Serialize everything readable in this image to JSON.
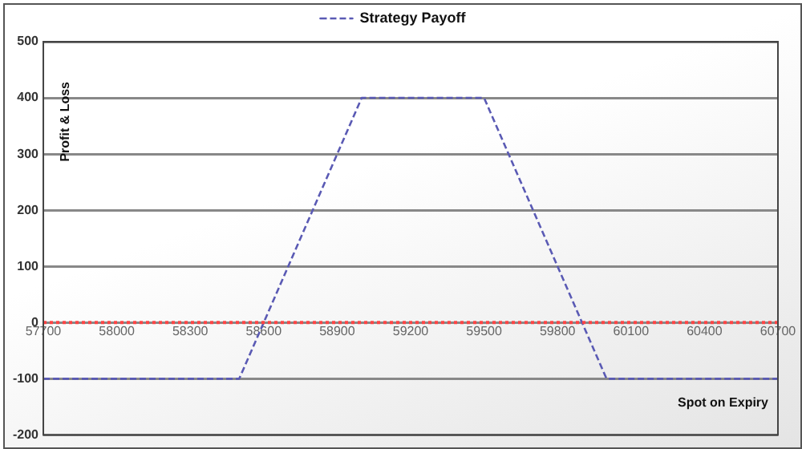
{
  "chart_data": {
    "type": "line",
    "xlabel": "Spot on Expiry",
    "ylabel": "Profit & Loss",
    "x": [
      57700,
      58500,
      59000,
      59500,
      60000,
      60700
    ],
    "series": [
      {
        "name": "Strategy Payoff",
        "color": "#5a5ab4",
        "values": [
          -100,
          -100,
          400,
          400,
          -100,
          -100
        ]
      }
    ],
    "xlim": [
      57700,
      60700
    ],
    "xticks": [
      57700,
      58000,
      58300,
      58600,
      58900,
      59200,
      59500,
      59800,
      60100,
      60400,
      60700
    ],
    "ylim": [
      -200,
      500
    ],
    "yticks": [
      -200,
      -100,
      0,
      100,
      200,
      300,
      400,
      500
    ],
    "ref_lines": [
      {
        "axis": "y",
        "value": 0,
        "color": "#ff4444",
        "line_style": "dotted"
      }
    ],
    "grid": "y",
    "legend": "top",
    "marker": "none",
    "line_style": "dashed"
  }
}
